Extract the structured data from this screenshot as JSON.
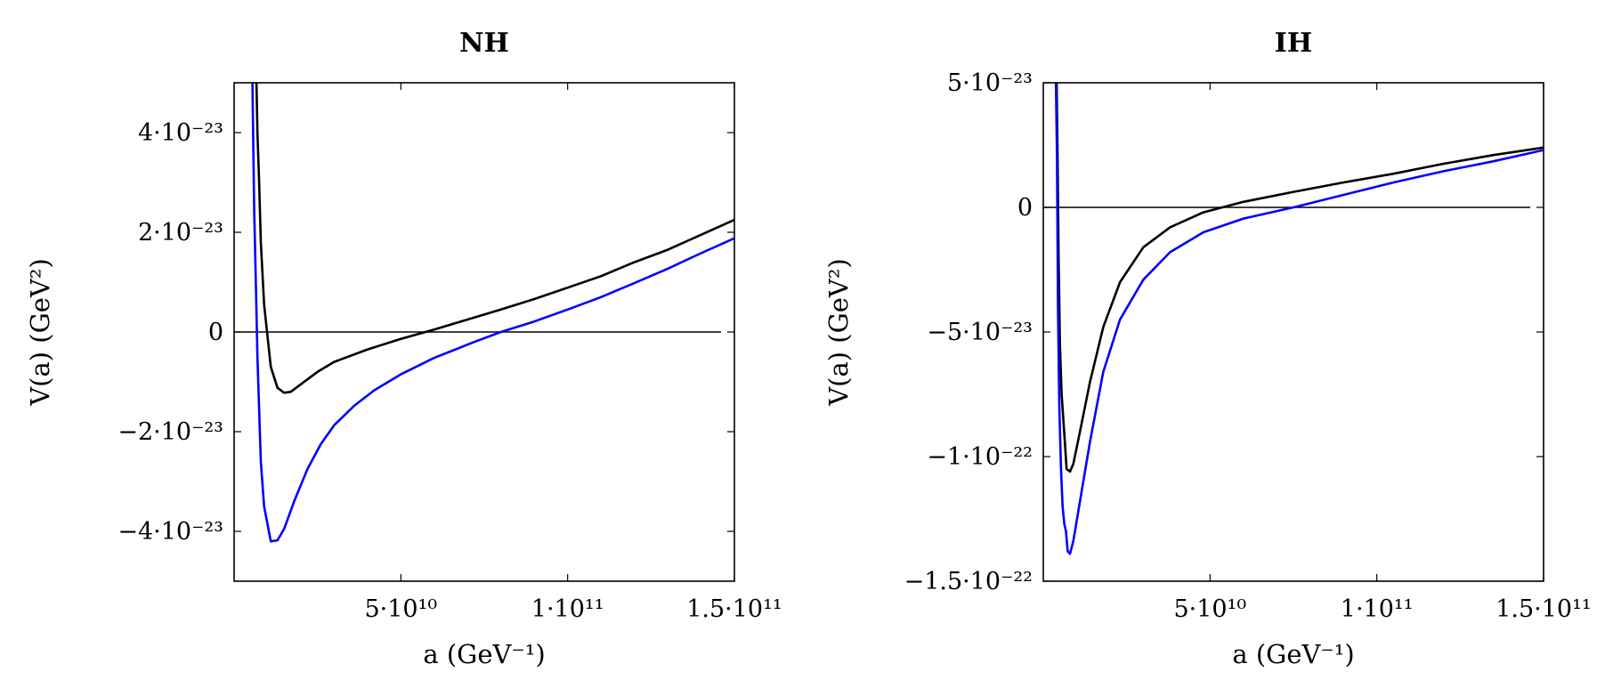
{
  "chart_data": [
    {
      "type": "line",
      "title": "NH",
      "xlabel": "a (GeV⁻¹)",
      "ylabel": "V(a) (GeV²)",
      "xlim": [
        0,
        150000000000
      ],
      "ylim": [
        -5e-23,
        5e-23
      ],
      "x_ticks": [
        {
          "value": 50000000000,
          "label": "5·10¹⁰"
        },
        {
          "value": 100000000000,
          "label": "1·10¹¹"
        },
        {
          "value": 150000000000,
          "label": "1.5·10¹¹"
        }
      ],
      "y_ticks": [
        {
          "value": -4e-23,
          "label": "−4·10⁻²³"
        },
        {
          "value": -2e-23,
          "label": "−2·10⁻²³"
        },
        {
          "value": 0,
          "label": "0"
        },
        {
          "value": 2e-23,
          "label": "2·10⁻²³"
        },
        {
          "value": 4e-23,
          "label": "4·10⁻²³"
        }
      ],
      "grid": false,
      "reference_line_y": 0,
      "series": [
        {
          "color": "#000000",
          "x": [
            6700000000,
            7000000000,
            7500000000,
            8000000000,
            9000000000,
            11000000000,
            13000000000,
            15000000000,
            17000000000,
            20000000000,
            25000000000,
            30000000000,
            40000000000,
            50000000000,
            60000000000,
            70000000000,
            80000000000,
            90000000000,
            100000000000,
            110000000000,
            120000000000,
            130000000000,
            140000000000,
            150000000000
          ],
          "y": [
            5e-23,
            4e-23,
            3e-23,
            1.8e-23,
            5.5e-24,
            -7e-24,
            -1.12e-23,
            -1.22e-23,
            -1.2e-23,
            -1.05e-23,
            -8e-24,
            -6e-24,
            -3.5e-24,
            -1.4e-24,
            5e-25,
            2.5e-24,
            4.5e-24,
            6.6e-24,
            8.9e-24,
            1.12e-23,
            1.4e-23,
            1.65e-23,
            1.95e-23,
            2.25e-23
          ]
        },
        {
          "color": "#0000ff",
          "x": [
            5500000000,
            6000000000,
            6500000000,
            7000000000,
            8000000000,
            9000000000,
            11000000000,
            13000000000,
            15000000000,
            18000000000,
            22000000000,
            26000000000,
            30000000000,
            36000000000,
            42000000000,
            50000000000,
            60000000000,
            72000000000,
            80000000000,
            90000000000,
            100000000000,
            110000000000,
            120000000000,
            130000000000,
            140000000000,
            150000000000
          ],
          "y": [
            5e-23,
            2.5e-23,
            1e-23,
            -5e-24,
            -2.6e-23,
            -3.5e-23,
            -4.2e-23,
            -4.18e-23,
            -3.95e-23,
            -3.4e-23,
            -2.75e-23,
            -2.25e-23,
            -1.87e-23,
            -1.48e-23,
            -1.17e-23,
            -8.5e-24,
            -5.2e-24,
            -2e-24,
            0,
            2.1e-24,
            4.5e-24,
            7e-24,
            9.8e-24,
            1.27e-23,
            1.58e-23,
            1.88e-23
          ]
        }
      ]
    },
    {
      "type": "line",
      "title": "IH",
      "xlabel": "a (GeV⁻¹)",
      "ylabel": "V(a) (GeV²)",
      "xlim": [
        0,
        150000000000
      ],
      "ylim": [
        -1.5e-22,
        5e-23
      ],
      "x_ticks": [
        {
          "value": 50000000000,
          "label": "5·10¹⁰"
        },
        {
          "value": 100000000000,
          "label": "1·10¹¹"
        },
        {
          "value": 150000000000,
          "label": "1.5·10¹¹"
        }
      ],
      "y_ticks": [
        {
          "value": -1.5e-22,
          "label": "−1.5·10⁻²²"
        },
        {
          "value": -1e-22,
          "label": "−1·10⁻²²"
        },
        {
          "value": -5e-23,
          "label": "−5·10⁻²³"
        },
        {
          "value": 0,
          "label": "0"
        },
        {
          "value": 5e-23,
          "label": "5·10⁻²³"
        }
      ],
      "grid": false,
      "reference_line_y": 0,
      "series": [
        {
          "color": "#000000",
          "x": [
            4000000000,
            4300000000,
            4600000000,
            5000000000,
            5500000000,
            6000000000,
            6500000000,
            7000000000,
            8000000000,
            9000000000,
            11000000000,
            14000000000,
            18000000000,
            23000000000,
            30000000000,
            38000000000,
            48000000000,
            60000000000,
            75000000000,
            90000000000,
            105000000000,
            120000000000,
            135000000000,
            150000000000
          ],
          "y": [
            5e-23,
            2e-23,
            -2e-23,
            -5.5e-23,
            -7.5e-23,
            -8.5e-23,
            -9.5e-23,
            -1.05e-22,
            -1.06e-22,
            -1.03e-22,
            -9e-23,
            -7e-23,
            -4.8e-23,
            -3e-23,
            -1.6e-23,
            -8e-24,
            -2e-24,
            2.2e-24,
            6.2e-24,
            1e-23,
            1.35e-23,
            1.75e-23,
            2.1e-23,
            2.4e-23
          ]
        },
        {
          "color": "#0000ff",
          "x": [
            3800000000,
            4100000000,
            4400000000,
            4800000000,
            5300000000,
            5800000000,
            6300000000,
            6800000000,
            7300000000,
            8000000000,
            9000000000,
            11000000000,
            14000000000,
            18000000000,
            23000000000,
            30000000000,
            38000000000,
            48000000000,
            60000000000,
            75000000000,
            90000000000,
            105000000000,
            120000000000,
            135000000000,
            150000000000
          ],
          "y": [
            5e-23,
            2e-23,
            -4e-23,
            -8e-23,
            -1.05e-22,
            -1.2e-22,
            -1.27e-22,
            -1.3e-22,
            -1.38e-22,
            -1.39e-22,
            -1.34e-22,
            -1.18e-22,
            -9.4e-23,
            -6.6e-23,
            -4.5e-23,
            -2.9e-23,
            -1.8e-23,
            -1e-23,
            -4.5e-24,
            0,
            5e-24,
            1e-23,
            1.45e-23,
            1.85e-23,
            2.3e-23
          ]
        }
      ]
    }
  ]
}
